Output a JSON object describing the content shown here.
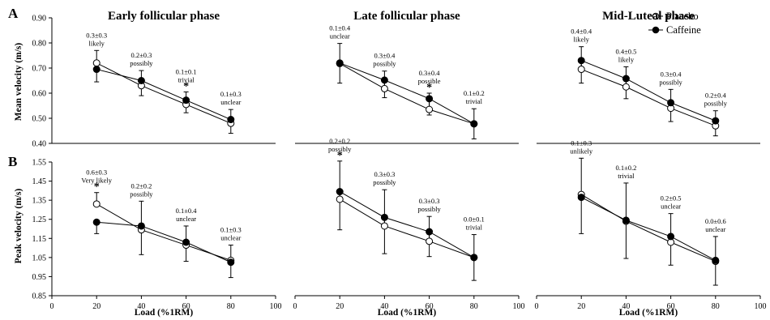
{
  "figure": {
    "panel_labels": [
      "A",
      "B"
    ],
    "ylabels": [
      "Mean velocity (m/s)",
      "Peak velocity (m/s)"
    ],
    "xlabel": "Load (%1RM)",
    "legend": [
      "Placebo",
      "Caffeine"
    ]
  },
  "chart_data": [
    {
      "type": "line",
      "panel": "A",
      "title": "Early follicular phase",
      "x": [
        20,
        40,
        60,
        80
      ],
      "xlim": [
        0,
        100
      ],
      "ylim": [
        0.4,
        0.9
      ],
      "series": [
        {
          "name": "Placebo",
          "values": [
            0.72,
            0.63,
            0.555,
            0.48
          ],
          "err": [
            0.05,
            0.06,
            0.05,
            0.055
          ]
        },
        {
          "name": "Caffeine",
          "values": [
            0.695,
            0.65,
            0.572,
            0.495
          ],
          "err": [
            0.05,
            0.06,
            0.05,
            0.055
          ]
        }
      ],
      "annotations": [
        {
          "x": 20,
          "lines": [
            "0.3±0.3",
            "likely"
          ],
          "star": false
        },
        {
          "x": 40,
          "lines": [
            "0.2±0.3",
            "possibly"
          ],
          "star": false
        },
        {
          "x": 60,
          "lines": [
            "0.1±0.1",
            "trivial"
          ],
          "star": true
        },
        {
          "x": 80,
          "lines": [
            "0.1±0.3",
            "unclear"
          ],
          "star": false
        }
      ]
    },
    {
      "type": "line",
      "panel": "A",
      "title": "Late follicular phase",
      "x": [
        20,
        40,
        60,
        80
      ],
      "xlim": [
        0,
        100
      ],
      "ylim": [
        0.4,
        0.9
      ],
      "series": [
        {
          "name": "Placebo",
          "values": [
            0.718,
            0.618,
            0.535,
            0.478
          ],
          "err": [
            0.08,
            0.07,
            0.065,
            0.06
          ]
        },
        {
          "name": "Caffeine",
          "values": [
            0.72,
            0.652,
            0.578,
            0.478
          ],
          "err": [
            0.08,
            0.07,
            0.065,
            0.06
          ]
        }
      ],
      "annotations": [
        {
          "x": 20,
          "lines": [
            "0.1±0.4",
            "unclear"
          ],
          "star": false
        },
        {
          "x": 40,
          "lines": [
            "0.3±0.4",
            "possibly"
          ],
          "star": false
        },
        {
          "x": 60,
          "lines": [
            "0.3±0.4",
            "possible"
          ],
          "star": true
        },
        {
          "x": 80,
          "lines": [
            "0.1±0.2",
            "trivial"
          ],
          "star": false
        }
      ]
    },
    {
      "type": "line",
      "panel": "A",
      "title": "Mid-Luteal phase",
      "x": [
        20,
        40,
        60,
        80
      ],
      "xlim": [
        0,
        100
      ],
      "ylim": [
        0.4,
        0.9
      ],
      "series": [
        {
          "name": "Placebo",
          "values": [
            0.695,
            0.625,
            0.54,
            0.47
          ],
          "err": [
            0.09,
            0.08,
            0.075,
            0.06
          ]
        },
        {
          "name": "Caffeine",
          "values": [
            0.73,
            0.658,
            0.562,
            0.49
          ],
          "err": [
            0.09,
            0.08,
            0.075,
            0.06
          ]
        }
      ],
      "annotations": [
        {
          "x": 20,
          "lines": [
            "0.4±0.4",
            "likely"
          ],
          "star": false
        },
        {
          "x": 40,
          "lines": [
            "0.4±0.5",
            "likely"
          ],
          "star": false
        },
        {
          "x": 60,
          "lines": [
            "0.3±0.4",
            "possibly"
          ],
          "star": false
        },
        {
          "x": 80,
          "lines": [
            "0.2±0.4",
            "possibly"
          ],
          "star": false
        }
      ]
    },
    {
      "type": "line",
      "panel": "B",
      "title": "",
      "x": [
        20,
        40,
        60,
        80
      ],
      "xlim": [
        0,
        100
      ],
      "ylim": [
        0.85,
        1.55
      ],
      "series": [
        {
          "name": "Placebo",
          "values": [
            1.33,
            1.195,
            1.115,
            1.035
          ],
          "err": [
            0.06,
            0.15,
            0.1,
            0.08
          ]
        },
        {
          "name": "Caffeine",
          "values": [
            1.235,
            1.215,
            1.13,
            1.025
          ],
          "err": [
            0.06,
            0.15,
            0.1,
            0.08
          ]
        }
      ],
      "annotations": [
        {
          "x": 20,
          "lines": [
            "0.6±0.3",
            "Very likely"
          ],
          "star": true
        },
        {
          "x": 40,
          "lines": [
            "0.2±0.2",
            "possibly"
          ],
          "star": false
        },
        {
          "x": 60,
          "lines": [
            "0.1±0.4",
            "unclear"
          ],
          "star": false
        },
        {
          "x": 80,
          "lines": [
            "0.1±0.3",
            "unclear"
          ],
          "star": false
        }
      ]
    },
    {
      "type": "line",
      "panel": "B",
      "title": "",
      "x": [
        20,
        40,
        60,
        80
      ],
      "xlim": [
        0,
        100
      ],
      "ylim": [
        0.85,
        1.55
      ],
      "series": [
        {
          "name": "Placebo",
          "values": [
            1.355,
            1.215,
            1.135,
            1.05
          ],
          "err": [
            0.2,
            0.19,
            0.13,
            0.12
          ]
        },
        {
          "name": "Caffeine",
          "values": [
            1.395,
            1.26,
            1.185,
            1.05
          ],
          "err": [
            0.2,
            0.19,
            0.13,
            0.12
          ]
        }
      ],
      "annotations": [
        {
          "x": 20,
          "lines": [
            "0.2±0.2",
            "possibly"
          ],
          "star": true
        },
        {
          "x": 40,
          "lines": [
            "0.3±0.3",
            "possibly"
          ],
          "star": false
        },
        {
          "x": 60,
          "lines": [
            "0.3±0.3",
            "possibly"
          ],
          "star": false
        },
        {
          "x": 80,
          "lines": [
            "0.0±0.1",
            "trivial"
          ],
          "star": false
        }
      ]
    },
    {
      "type": "line",
      "panel": "B",
      "title": "",
      "x": [
        20,
        40,
        60,
        80
      ],
      "xlim": [
        0,
        100
      ],
      "ylim": [
        0.85,
        1.55
      ],
      "series": [
        {
          "name": "Placebo",
          "values": [
            1.38,
            1.24,
            1.13,
            1.03
          ],
          "err": [
            0.19,
            0.2,
            0.15,
            0.13
          ]
        },
        {
          "name": "Caffeine",
          "values": [
            1.365,
            1.245,
            1.16,
            1.035
          ],
          "err": [
            0.19,
            0.2,
            0.15,
            0.13
          ]
        }
      ],
      "annotations": [
        {
          "x": 20,
          "lines": [
            "0.1±0.3",
            "unlikely"
          ],
          "star": false
        },
        {
          "x": 40,
          "lines": [
            "0.1±0.2",
            "trivial"
          ],
          "star": false
        },
        {
          "x": 60,
          "lines": [
            "0.2±0.5",
            "unclear"
          ],
          "star": false
        },
        {
          "x": 80,
          "lines": [
            "0.0±0.6",
            "unclear"
          ],
          "star": false
        }
      ]
    }
  ]
}
